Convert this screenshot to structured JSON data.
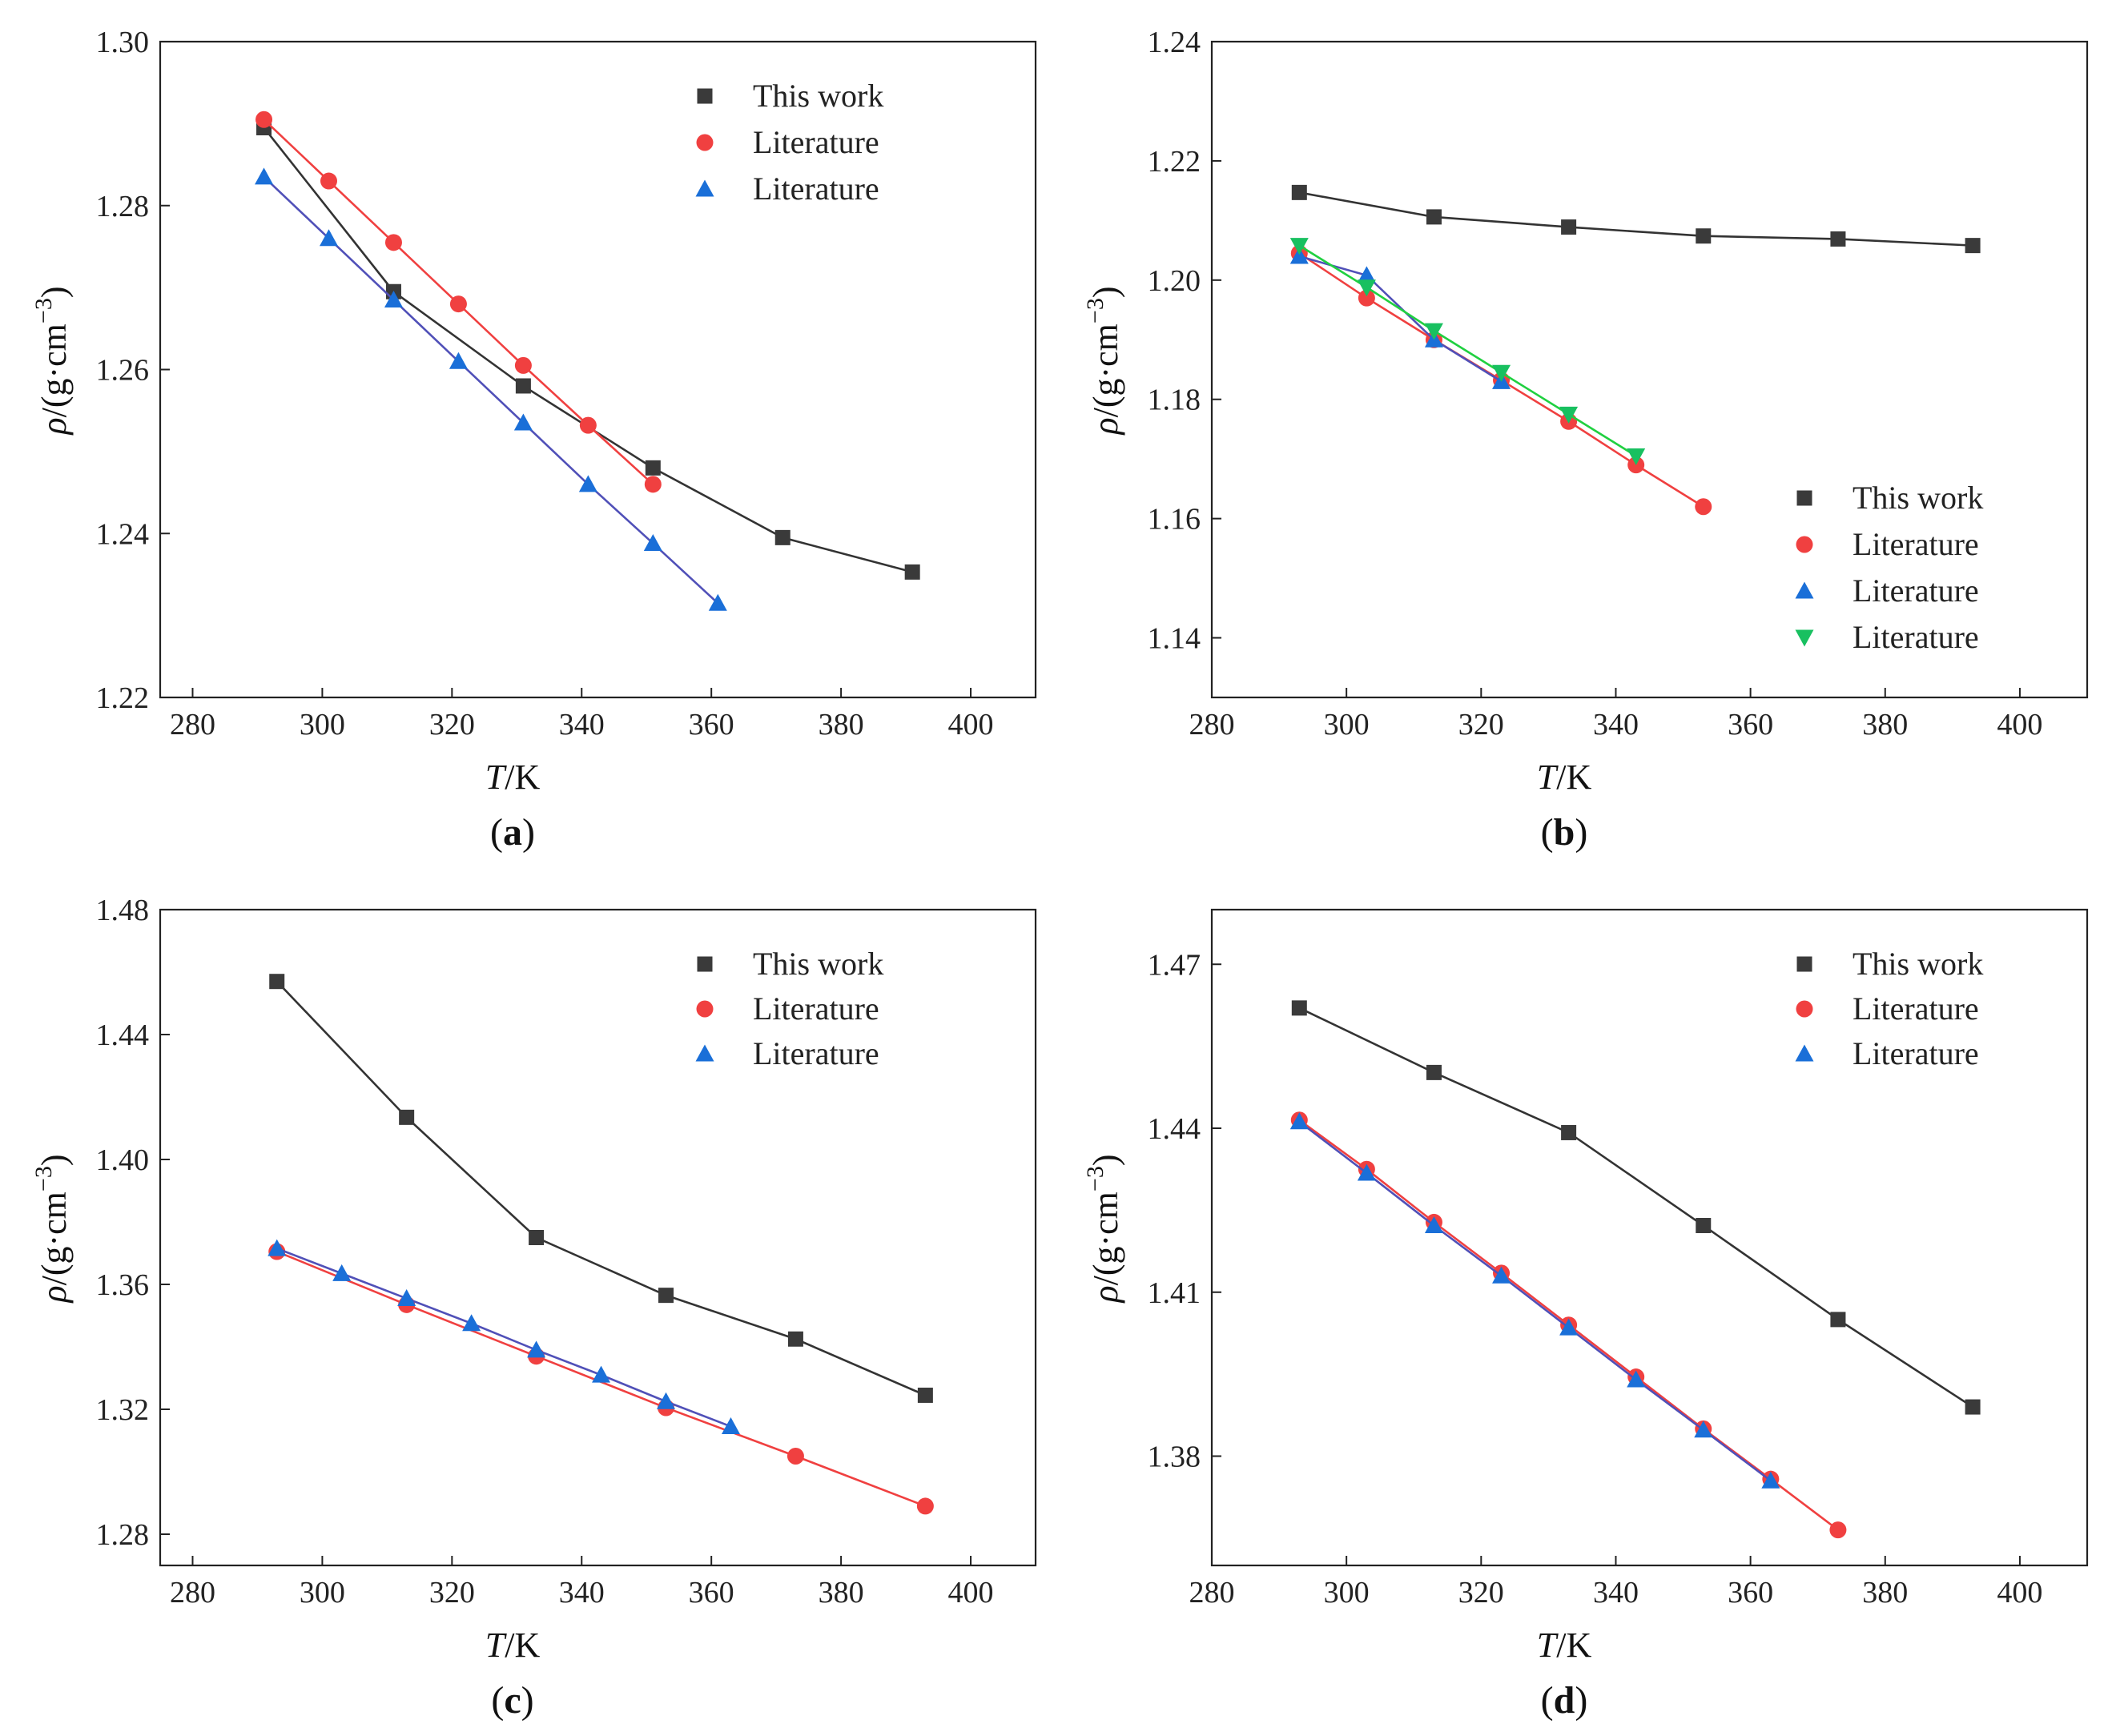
{
  "colors": {
    "this_work": "#3a3a3a",
    "lit_red": "#f04040",
    "lit_blue": "#1a6fd8",
    "lit_green": "#18c060",
    "line_red": "#f04040",
    "line_blue": "#5050b8",
    "line_green": "#20d040",
    "line_black": "#333333"
  },
  "chart_data": [
    {
      "type": "line",
      "panel_label": "a",
      "xlabel_italic": "T",
      "xlabel_unit": "/K",
      "ylabel_italic": "ρ",
      "ylabel_unit": "/(g·cm",
      "ylabel_exp": "−3",
      "ylabel_close": ")",
      "xlim": [
        275,
        410
      ],
      "ylim": [
        1.22,
        1.3
      ],
      "xticks": [
        280,
        300,
        320,
        340,
        360,
        380,
        400
      ],
      "yticks": [
        1.22,
        1.24,
        1.26,
        1.28,
        1.3
      ],
      "ytick_labels": [
        "1.22",
        "1.24",
        "1.26",
        "1.28",
        "1.30"
      ],
      "legend_position": "top-right",
      "series": [
        {
          "name": "This work",
          "marker": "square",
          "color_key": "this_work",
          "line_key": "line_black",
          "x": [
            291,
            311,
            331,
            351,
            371,
            391
          ],
          "y": [
            1.2895,
            1.2695,
            1.258,
            1.248,
            1.2395,
            1.2353
          ]
        },
        {
          "name": "Literature",
          "marker": "circle",
          "color_key": "lit_red",
          "line_key": "line_red",
          "x": [
            291,
            301,
            311,
            321,
            331,
            341,
            351
          ],
          "y": [
            1.2905,
            1.283,
            1.2755,
            1.268,
            1.2605,
            1.2532,
            1.246
          ]
        },
        {
          "name": "Literature",
          "marker": "triangle",
          "color_key": "lit_blue",
          "line_key": "line_blue",
          "x": [
            291,
            301,
            311,
            321,
            331,
            341,
            351,
            361
          ],
          "y": [
            1.2835,
            1.276,
            1.2685,
            1.261,
            1.2535,
            1.246,
            1.2388,
            1.2315
          ]
        }
      ]
    },
    {
      "type": "line",
      "panel_label": "b",
      "xlabel_italic": "T",
      "xlabel_unit": "/K",
      "ylabel_italic": "ρ",
      "ylabel_unit": "/(g·cm",
      "ylabel_exp": "−3",
      "ylabel_close": ")",
      "xlim": [
        280,
        410
      ],
      "ylim": [
        1.13,
        1.24
      ],
      "xticks": [
        280,
        300,
        320,
        340,
        360,
        380,
        400
      ],
      "yticks": [
        1.14,
        1.16,
        1.18,
        1.2,
        1.22,
        1.24
      ],
      "ytick_labels": [
        "1.14",
        "1.16",
        "1.18",
        "1.20",
        "1.22",
        "1.24"
      ],
      "legend_position": "bottom-right",
      "series": [
        {
          "name": "This work",
          "marker": "square",
          "color_key": "this_work",
          "line_key": "line_black",
          "x": [
            293,
            313,
            333,
            353,
            373,
            393
          ],
          "y": [
            1.2147,
            1.2106,
            1.2089,
            1.2074,
            1.2069,
            1.2058
          ]
        },
        {
          "name": "Literature",
          "marker": "circle",
          "color_key": "lit_red",
          "line_key": "line_red",
          "x": [
            293,
            303,
            313,
            323,
            333,
            343,
            353
          ],
          "y": [
            1.2045,
            1.197,
            1.19,
            1.1832,
            1.1763,
            1.169,
            1.162
          ]
        },
        {
          "name": "Literature",
          "marker": "triangle",
          "color_key": "lit_blue",
          "line_key": "line_blue",
          "x": [
            293,
            303,
            313,
            323
          ],
          "y": [
            1.204,
            1.2008,
            1.19,
            1.183
          ]
        },
        {
          "name": "Literature",
          "marker": "triangle-down",
          "color_key": "lit_green",
          "line_key": "line_green",
          "x": [
            293,
            303,
            313,
            323,
            333,
            343
          ],
          "y": [
            1.2058,
            1.1988,
            1.1915,
            1.1845,
            1.1775,
            1.1705
          ]
        }
      ]
    },
    {
      "type": "line",
      "panel_label": "c",
      "xlabel_italic": "T",
      "xlabel_unit": "/K",
      "ylabel_italic": "ρ",
      "ylabel_unit": "/(g·cm",
      "ylabel_exp": "−3",
      "ylabel_close": ")",
      "xlim": [
        275,
        410
      ],
      "ylim": [
        1.27,
        1.48
      ],
      "xticks": [
        280,
        300,
        320,
        340,
        360,
        380,
        400
      ],
      "yticks": [
        1.28,
        1.32,
        1.36,
        1.4,
        1.44,
        1.48
      ],
      "ytick_labels": [
        "1.28",
        "1.32",
        "1.36",
        "1.40",
        "1.44",
        "1.48"
      ],
      "legend_position": "top-right",
      "series": [
        {
          "name": "This work",
          "marker": "square",
          "color_key": "this_work",
          "line_key": "line_black",
          "x": [
            293,
            313,
            333,
            353,
            373,
            393
          ],
          "y": [
            1.457,
            1.4135,
            1.375,
            1.3565,
            1.3425,
            1.3245
          ]
        },
        {
          "name": "Literature",
          "marker": "circle",
          "color_key": "lit_red",
          "line_key": "line_red",
          "x": [
            293,
            313,
            333,
            353,
            373,
            393
          ],
          "y": [
            1.3705,
            1.3535,
            1.337,
            1.3205,
            1.305,
            1.289
          ]
        },
        {
          "name": "Literature",
          "marker": "triangle",
          "color_key": "lit_blue",
          "line_key": "line_blue",
          "x": [
            293,
            303,
            313,
            323,
            333,
            343,
            353,
            363
          ],
          "y": [
            1.3715,
            1.3635,
            1.3555,
            1.3475,
            1.339,
            1.331,
            1.3225,
            1.3145
          ]
        }
      ]
    },
    {
      "type": "line",
      "panel_label": "d",
      "xlabel_italic": "T",
      "xlabel_unit": "/K",
      "ylabel_italic": "ρ",
      "ylabel_unit": "/(g·cm",
      "ylabel_exp": "−3",
      "ylabel_close": ")",
      "xlim": [
        280,
        410
      ],
      "ylim": [
        1.36,
        1.48
      ],
      "xticks": [
        280,
        300,
        320,
        340,
        360,
        380,
        400
      ],
      "yticks": [
        1.38,
        1.41,
        1.44,
        1.47
      ],
      "ytick_labels": [
        "1.38",
        "1.41",
        "1.44",
        "1.47"
      ],
      "legend_position": "top-right",
      "series": [
        {
          "name": "This work",
          "marker": "square",
          "color_key": "this_work",
          "line_key": "line_black",
          "x": [
            293,
            313,
            333,
            353,
            373,
            393
          ],
          "y": [
            1.462,
            1.4502,
            1.4392,
            1.4222,
            1.405,
            1.389
          ]
        },
        {
          "name": "Literature",
          "marker": "circle",
          "color_key": "lit_red",
          "line_key": "line_red",
          "x": [
            293,
            303,
            313,
            323,
            333,
            343,
            353,
            363,
            373
          ],
          "y": [
            1.4415,
            1.4325,
            1.4228,
            1.4135,
            1.404,
            1.3945,
            1.385,
            1.3758,
            1.3665
          ]
        },
        {
          "name": "Literature",
          "marker": "triangle",
          "color_key": "lit_blue",
          "line_key": "line_blue",
          "x": [
            293,
            303,
            313,
            323,
            333,
            343,
            353,
            363
          ],
          "y": [
            1.4412,
            1.4318,
            1.4222,
            1.413,
            1.4035,
            1.394,
            1.3848,
            1.3755
          ]
        }
      ]
    }
  ]
}
